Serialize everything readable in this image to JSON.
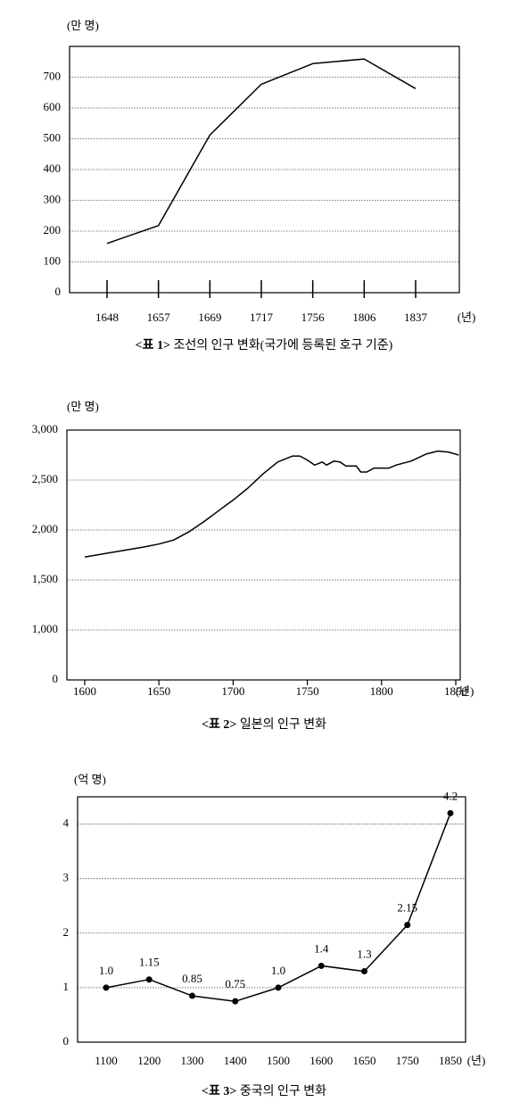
{
  "chart_data": [
    {
      "type": "line",
      "label": "<표 1>",
      "title": "조선의 인구 변화(국가에 등록된 호구 기준)",
      "y_label": "(만 명)",
      "x_label": "(년)",
      "categories": [
        "1648",
        "1657",
        "1669",
        "1717",
        "1756",
        "1806",
        "1837"
      ],
      "values": [
        160,
        218,
        512,
        677,
        744,
        759,
        663
      ],
      "color": "#000000",
      "ylim": [
        0,
        800
      ],
      "yticks": [
        0,
        100,
        200,
        300,
        400,
        500,
        600,
        700
      ],
      "grid": true,
      "markers": false
    },
    {
      "type": "line",
      "label": "<표 2>",
      "title": "일본의 인구 변화",
      "y_label": "(만 명)",
      "x_label": "(년)",
      "x": [
        1600,
        1620,
        1640,
        1650,
        1660,
        1670,
        1680,
        1690,
        1700,
        1710,
        1720,
        1725,
        1730,
        1740,
        1745,
        1750,
        1755,
        1760,
        1763,
        1768,
        1772,
        1776,
        1783,
        1786,
        1790,
        1795,
        1805,
        1810,
        1820,
        1830,
        1838,
        1845,
        1852
      ],
      "values": [
        1730,
        1780,
        1830,
        1860,
        1900,
        1980,
        2080,
        2190,
        2300,
        2420,
        2560,
        2620,
        2680,
        2740,
        2740,
        2700,
        2650,
        2680,
        2650,
        2690,
        2680,
        2640,
        2640,
        2580,
        2580,
        2620,
        2620,
        2650,
        2690,
        2760,
        2790,
        2780,
        2750
      ],
      "color": "#000000",
      "xlim": [
        1588,
        1853
      ],
      "xticks": [
        1600,
        1650,
        1700,
        1750,
        1800,
        1850
      ],
      "ylim": [
        0,
        3000
      ],
      "yticks": [
        0,
        {
          "value": 1000,
          "label": "1,000"
        },
        {
          "value": 1500,
          "label": "1,500"
        },
        {
          "value": 2000,
          "label": "2,000"
        },
        {
          "value": 2500,
          "label": "2,500"
        },
        {
          "value": 3000,
          "label": "3,000"
        }
      ],
      "grid": true,
      "markers": false
    },
    {
      "type": "line",
      "label": "<표 3>",
      "title": "중국의 인구 변화",
      "y_label": "(억 명)",
      "x_label": "(년)",
      "categories": [
        "1100",
        "1200",
        "1300",
        "1400",
        "1500",
        "1600",
        "1650",
        "1750",
        "1850"
      ],
      "values": [
        1,
        1.15,
        0.85,
        0.75,
        1,
        1.4,
        1.3,
        2.15,
        4.2
      ],
      "value_labels": [
        "1.0",
        "1.15",
        "0.85",
        "0.75",
        "1.0",
        "1.4",
        "1.3",
        "2.15",
        "4.2"
      ],
      "color": "#000000",
      "ylim": [
        0,
        4.5
      ],
      "yticks": [
        0,
        1,
        2,
        3,
        4
      ],
      "grid": true,
      "markers": true
    }
  ]
}
